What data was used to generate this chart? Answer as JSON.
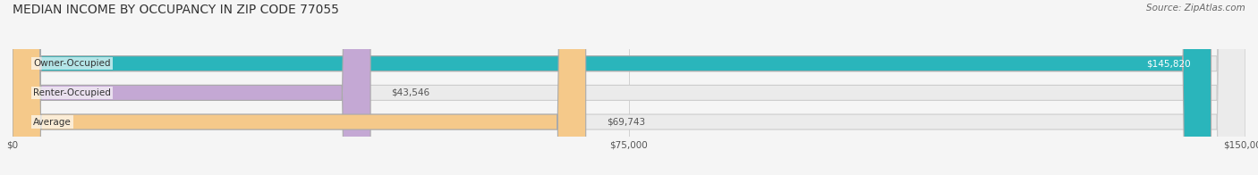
{
  "title": "MEDIAN INCOME BY OCCUPANCY IN ZIP CODE 77055",
  "source": "Source: ZipAtlas.com",
  "categories": [
    "Owner-Occupied",
    "Renter-Occupied",
    "Average"
  ],
  "values": [
    145820,
    43546,
    69743
  ],
  "bar_colors": [
    "#2ab5bb",
    "#c4a8d4",
    "#f5c98a"
  ],
  "bar_bg_color": "#ebebeb",
  "value_labels": [
    "$145,820",
    "$43,546",
    "$69,743"
  ],
  "xlim": [
    0,
    150000
  ],
  "xticks": [
    0,
    75000,
    150000
  ],
  "xtick_labels": [
    "$0",
    "$75,000",
    "$150,000"
  ],
  "title_fontsize": 10,
  "source_fontsize": 7.5,
  "label_fontsize": 7.5,
  "bar_height": 0.52,
  "figsize": [
    14.06,
    1.96
  ],
  "dpi": 100,
  "bg_color": "#f5f5f5",
  "title_color": "#333333",
  "source_color": "#666666",
  "cat_label_color": "#333333",
  "val_label_inside_color": "#ffffff",
  "val_label_outside_color": "#555555"
}
